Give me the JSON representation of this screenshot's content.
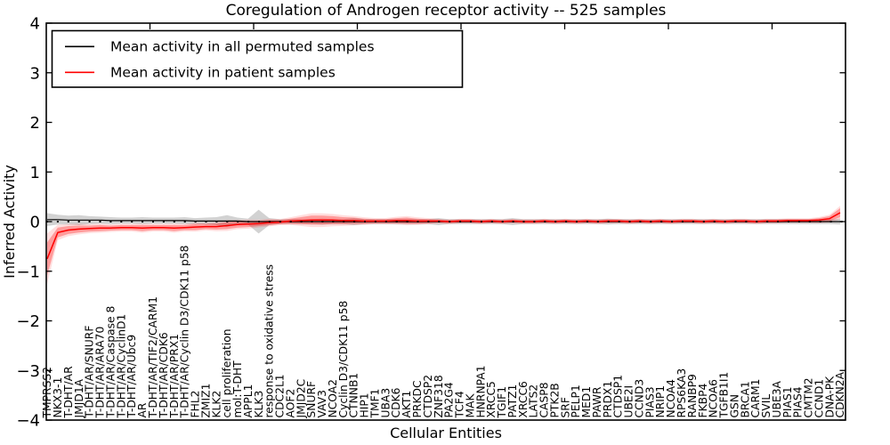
{
  "chart_data": {
    "type": "line",
    "title": "Coregulation of Androgen receptor activity -- 525 samples",
    "xlabel": "Cellular Entities",
    "ylabel": "Inferred Activity",
    "ylim": [
      -4,
      4
    ],
    "ytick_values": [
      4,
      3,
      2,
      1,
      0,
      -1,
      -2,
      -3,
      -4
    ],
    "ytick_labels": [
      "4",
      "3",
      "2",
      "1",
      "0",
      "−1",
      "−2",
      "−3",
      "−4"
    ],
    "grid": false,
    "zero_line": {
      "value": 0,
      "style": "dotted",
      "color": "#000000"
    },
    "legend": {
      "position": "upper left",
      "entries": [
        {
          "label": "Mean activity in all permuted samples",
          "color": "#000000"
        },
        {
          "label": "Mean activity in patient samples",
          "color": "#ff0000"
        }
      ]
    },
    "categories": [
      "TMPRSS2",
      "NKX3-1",
      "T-DHT/AR",
      "JMJD1A",
      "T-DHT/AR/SNURF",
      "T-DHT/AR/ARA70",
      "T-DHT/AR/Caspase 8",
      "T-DHT/AR/CyclinD1",
      "T-DHT/AR/Ubc9",
      "AR",
      "T-DHT/AR/TIF2/CARM1",
      "T-DHT/AR/CDK6",
      "T-DHT/AR/PRX1",
      "T-DHT/AR/Cyclin D3/CDK11 p58",
      "FHL2",
      "ZMIZ1",
      "KLK2",
      "cell proliferation",
      "mol:T-DHT",
      "APPL1",
      "KLK3",
      "response to oxidative stress",
      "CDC2L1",
      "AOF2",
      "JMJD2C",
      "SNURF",
      "VAV3",
      "NCOA2",
      "Cyclin D3/CDK11 p58",
      "CTNNB1",
      "HIP1",
      "TMF1",
      "UBA3",
      "CDK6",
      "AKT1",
      "PRKDC",
      "CTDSP2",
      "ZNF318",
      "PA2G4",
      "TCF4",
      "MAK",
      "HNRNPA1",
      "XRCC5",
      "TGIF1",
      "PATZ1",
      "XRCC6",
      "LATS2",
      "CASP8",
      "PTK2B",
      "SRF",
      "PELP1",
      "MED1",
      "PAWR",
      "PRDX1",
      "CTDSP1",
      "UBE2I",
      "CCND3",
      "PIAS3",
      "NRIP1",
      "NCOA4",
      "RPS6KA3",
      "RANBP9",
      "FKBP4",
      "NCOA6",
      "TGFB1I1",
      "GSN",
      "BRCA1",
      "CARM1",
      "SVIL",
      "UBE3A",
      "PIAS1",
      "PIAS4",
      "CMTM2",
      "CCND1",
      "DNA-PK",
      "CDKN2A"
    ],
    "series": [
      {
        "name": "Mean activity in all permuted samples",
        "color": "#000000",
        "band_color": "#888888",
        "values": [
          0.04,
          0.04,
          0.03,
          0.03,
          0.03,
          0.03,
          0.02,
          0.02,
          0.02,
          0.02,
          0.02,
          0.02,
          0.02,
          0.02,
          0.01,
          0.01,
          0.01,
          0.01,
          0.01,
          0,
          0,
          0,
          0,
          0,
          0,
          0,
          0,
          0,
          0,
          0,
          0,
          0,
          0,
          0,
          0,
          0,
          0,
          0,
          0,
          0,
          0,
          0,
          0,
          0,
          0,
          0,
          0,
          0,
          0,
          0,
          0,
          0,
          0,
          0,
          0,
          0,
          0,
          0,
          0,
          0,
          0,
          0,
          0,
          0,
          0,
          0,
          0,
          0,
          0,
          0,
          0,
          0,
          0,
          0,
          0,
          0
        ],
        "std": [
          0.13,
          0.1,
          0.09,
          0.1,
          0.08,
          0.07,
          0.07,
          0.06,
          0.06,
          0.07,
          0.06,
          0.06,
          0.06,
          0.07,
          0.06,
          0.07,
          0.08,
          0.12,
          0.07,
          0.06,
          0.24,
          0.07,
          0.05,
          0.05,
          0.05,
          0.05,
          0.06,
          0.05,
          0.05,
          0.07,
          0.05,
          0.05,
          0.05,
          0.05,
          0.05,
          0.05,
          0.05,
          0.07,
          0.05,
          0.05,
          0.05,
          0.05,
          0.05,
          0.05,
          0.07,
          0.05,
          0.05,
          0.05,
          0.05,
          0.05,
          0.05,
          0.05,
          0.05,
          0.06,
          0.05,
          0.05,
          0.05,
          0.05,
          0.05,
          0.05,
          0.05,
          0.05,
          0.05,
          0.05,
          0.05,
          0.05,
          0.05,
          0.05,
          0.05,
          0.05,
          0.05,
          0.05,
          0.05,
          0.05,
          0.05,
          0.06
        ]
      },
      {
        "name": "Mean activity in patient samples",
        "color": "#ff0000",
        "band_color": "#ff0000",
        "values": [
          -0.75,
          -0.22,
          -0.17,
          -0.15,
          -0.14,
          -0.13,
          -0.13,
          -0.12,
          -0.12,
          -0.13,
          -0.12,
          -0.12,
          -0.13,
          -0.12,
          -0.11,
          -0.1,
          -0.1,
          -0.08,
          -0.06,
          -0.05,
          -0.04,
          -0.02,
          -0.01,
          0.01,
          0.02,
          0.03,
          0.03,
          0.03,
          0.02,
          0.02,
          0.01,
          0.01,
          0.01,
          0.02,
          0.02,
          0.01,
          0.01,
          0.01,
          0,
          0.01,
          0.01,
          0,
          0.01,
          0,
          0.01,
          0,
          0,
          0.01,
          0,
          0.01,
          0,
          0.01,
          0,
          0.01,
          0.01,
          0,
          0.01,
          0,
          0.01,
          0,
          0.01,
          0.01,
          0,
          0.01,
          0,
          0.01,
          0.01,
          0,
          0.01,
          0.01,
          0.02,
          0.02,
          0.02,
          0.03,
          0.06,
          0.18
        ],
        "std": [
          0.33,
          0.1,
          0.08,
          0.07,
          0.06,
          0.06,
          0.05,
          0.05,
          0.05,
          0.06,
          0.05,
          0.05,
          0.06,
          0.05,
          0.06,
          0.05,
          0.06,
          0.07,
          0.06,
          0.06,
          0.05,
          0.05,
          0.04,
          0.05,
          0.07,
          0.09,
          0.09,
          0.08,
          0.07,
          0.06,
          0.05,
          0.04,
          0.04,
          0.05,
          0.06,
          0.05,
          0.04,
          0.03,
          0.03,
          0.03,
          0.03,
          0.03,
          0.03,
          0.03,
          0.03,
          0.03,
          0.03,
          0.03,
          0.03,
          0.03,
          0.03,
          0.03,
          0.03,
          0.03,
          0.03,
          0.03,
          0.03,
          0.03,
          0.03,
          0.03,
          0.03,
          0.03,
          0.03,
          0.03,
          0.03,
          0.03,
          0.03,
          0.03,
          0.03,
          0.03,
          0.03,
          0.03,
          0.03,
          0.04,
          0.05,
          0.09
        ]
      }
    ]
  }
}
